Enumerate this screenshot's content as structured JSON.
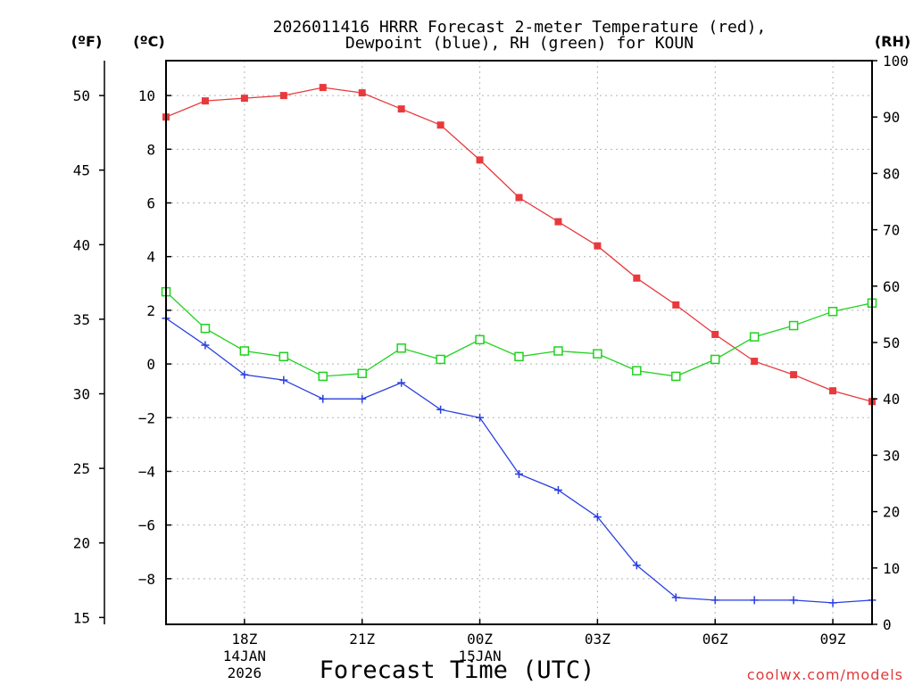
{
  "chart_data": {
    "type": "line",
    "title": {
      "line1": "2026011416 HRRR Forecast 2-meter Temperature (red),",
      "line2": "Dewpoint (blue), RH (green) for KOUN"
    },
    "xlabel": "Forecast Time (UTC)",
    "left_outer_axis_label": "(ºF)",
    "left_inner_axis_label": "(ºC)",
    "right_axis_label": "(RH)",
    "watermark": "coolwx.com/models",
    "x_hours": [
      16,
      17,
      18,
      19,
      20,
      21,
      22,
      23,
      24,
      25,
      26,
      27,
      28,
      29,
      30,
      31,
      32,
      33,
      34
    ],
    "x_range": [
      16,
      34
    ],
    "x_ticks": [
      {
        "hour": 18,
        "label": "18Z",
        "sub1": "14JAN",
        "sub2": "2026"
      },
      {
        "hour": 21,
        "label": "21Z",
        "sub1": "",
        "sub2": ""
      },
      {
        "hour": 24,
        "label": "00Z",
        "sub1": "15JAN",
        "sub2": ""
      },
      {
        "hour": 27,
        "label": "03Z",
        "sub1": "",
        "sub2": ""
      },
      {
        "hour": 30,
        "label": "06Z",
        "sub1": "",
        "sub2": ""
      },
      {
        "hour": 33,
        "label": "09Z",
        "sub1": "",
        "sub2": ""
      }
    ],
    "celsius_range": [
      -9.7,
      11.3
    ],
    "celsius_ticks": [
      10,
      8,
      6,
      4,
      2,
      0,
      -2,
      -4,
      -6,
      -8
    ],
    "celsius_tick_labels": [
      "10",
      "8",
      "6",
      "4",
      "2",
      "0",
      "−2",
      "−4",
      "−6",
      "−8"
    ],
    "fahrenheit_ticks": [
      50,
      45,
      40,
      35,
      30,
      25,
      20,
      15
    ],
    "fahrenheit_tick_labels": [
      "50",
      "45",
      "40",
      "35",
      "30",
      "25",
      "20",
      "15"
    ],
    "rh_range": [
      0,
      100
    ],
    "rh_ticks": [
      100,
      90,
      80,
      70,
      60,
      50,
      40,
      30,
      20,
      10,
      0
    ],
    "rh_tick_labels": [
      "100",
      "90",
      "80",
      "70",
      "60",
      "50",
      "40",
      "30",
      "20",
      "10",
      "0"
    ],
    "series": [
      {
        "name": "2-meter Temperature",
        "axis": "celsius",
        "color": "#e8393c",
        "marker": "filled-square",
        "values": [
          9.2,
          9.8,
          9.9,
          10.0,
          10.3,
          10.1,
          9.5,
          8.9,
          7.6,
          6.2,
          5.3,
          4.4,
          3.2,
          2.2,
          1.1,
          0.1,
          -0.4,
          -1.0,
          -1.4
        ]
      },
      {
        "name": "Dewpoint",
        "axis": "celsius",
        "color": "#2a3fe0",
        "marker": "plus",
        "values": [
          1.7,
          0.7,
          -0.4,
          -0.6,
          -1.3,
          -1.3,
          -0.7,
          -1.7,
          -2.0,
          -4.1,
          -4.7,
          -5.7,
          -7.5,
          -8.7,
          -8.8,
          -8.8,
          -8.8,
          -8.9,
          -8.8
        ]
      },
      {
        "name": "Relative Humidity",
        "axis": "rh",
        "color": "#1fd21f",
        "marker": "open-square",
        "values": [
          59,
          52.5,
          48.5,
          47.5,
          44,
          44.5,
          49,
          47,
          50.5,
          47.5,
          48.5,
          48,
          45,
          44,
          47,
          51,
          53,
          55.5,
          57
        ]
      }
    ]
  }
}
